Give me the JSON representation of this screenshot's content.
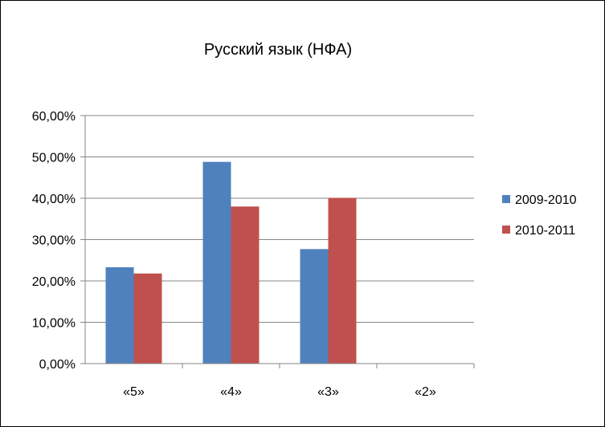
{
  "chart_data": {
    "type": "bar",
    "title": "Русский язык (НФА)",
    "categories": [
      "«5»",
      "«4»",
      "«3»",
      "«2»"
    ],
    "series": [
      {
        "name": "2009-2010",
        "color": "#4F81BD",
        "values": [
          23.3,
          48.8,
          27.7,
          0
        ]
      },
      {
        "name": "2010-2011",
        "color": "#C0504D",
        "values": [
          21.8,
          38.0,
          40.1,
          0
        ]
      }
    ],
    "ylim": [
      0,
      60
    ],
    "yticks": [
      "0,00%",
      "10,00%",
      "20,00%",
      "30,00%",
      "40,00%",
      "50,00%",
      "60,00%"
    ],
    "grid": true,
    "legend_position": "right"
  }
}
